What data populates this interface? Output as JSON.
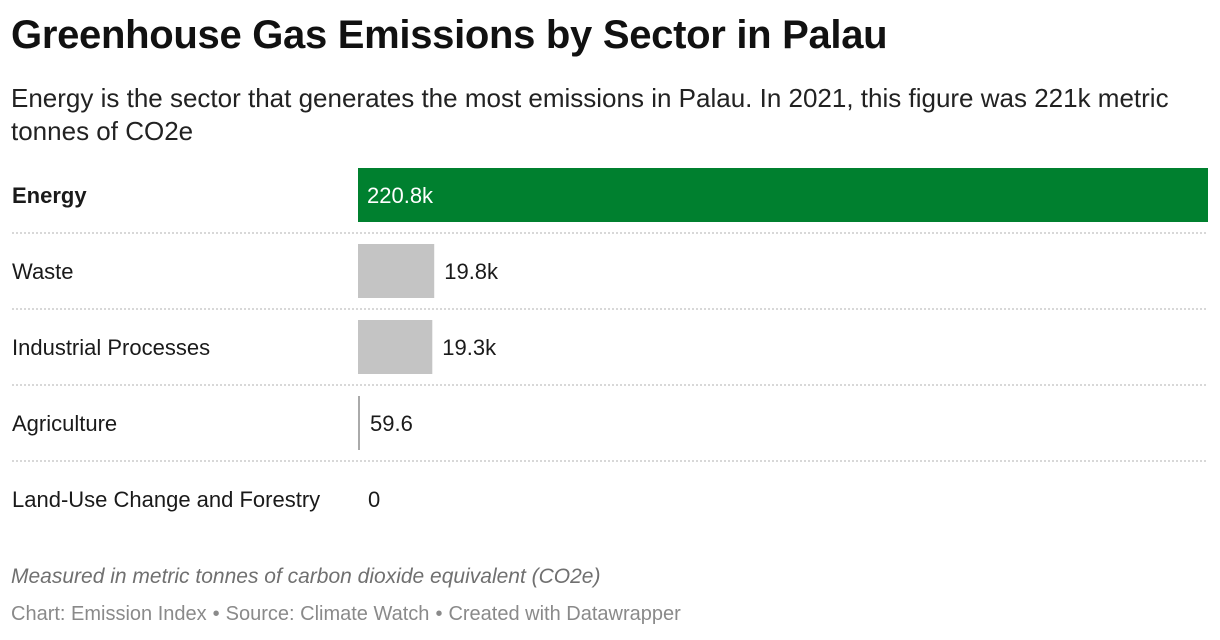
{
  "title": "Greenhouse Gas Emissions by Sector in Palau",
  "subtitle": "Energy is the sector that generates the most emissions in Palau. In 2021, this figure was 221k metric tonnes of CO2e",
  "notes": "Measured in metric tonnes of carbon dioxide equivalent (CO2e)",
  "footer": {
    "chart_credit": "Chart: Emission Index",
    "source": "Source: Climate Watch",
    "created_with": "Created with Datawrapper",
    "separator": "•"
  },
  "colors": {
    "highlight": "#00802f",
    "bar": "#c4c4c4",
    "divider": "#cccccc"
  },
  "chart_data": {
    "type": "bar",
    "orientation": "horizontal",
    "categories": [
      "Energy",
      "Waste",
      "Industrial Processes",
      "Agriculture",
      "Land-Use Change and Forestry"
    ],
    "values": [
      220800,
      19800,
      19300,
      59.6,
      0
    ],
    "value_labels": [
      "220.8k",
      "19.8k",
      "19.3k",
      "59.6",
      "0"
    ],
    "highlight_category": "Energy",
    "xlim": [
      0,
      220800
    ],
    "grid": false,
    "legend": "none"
  }
}
